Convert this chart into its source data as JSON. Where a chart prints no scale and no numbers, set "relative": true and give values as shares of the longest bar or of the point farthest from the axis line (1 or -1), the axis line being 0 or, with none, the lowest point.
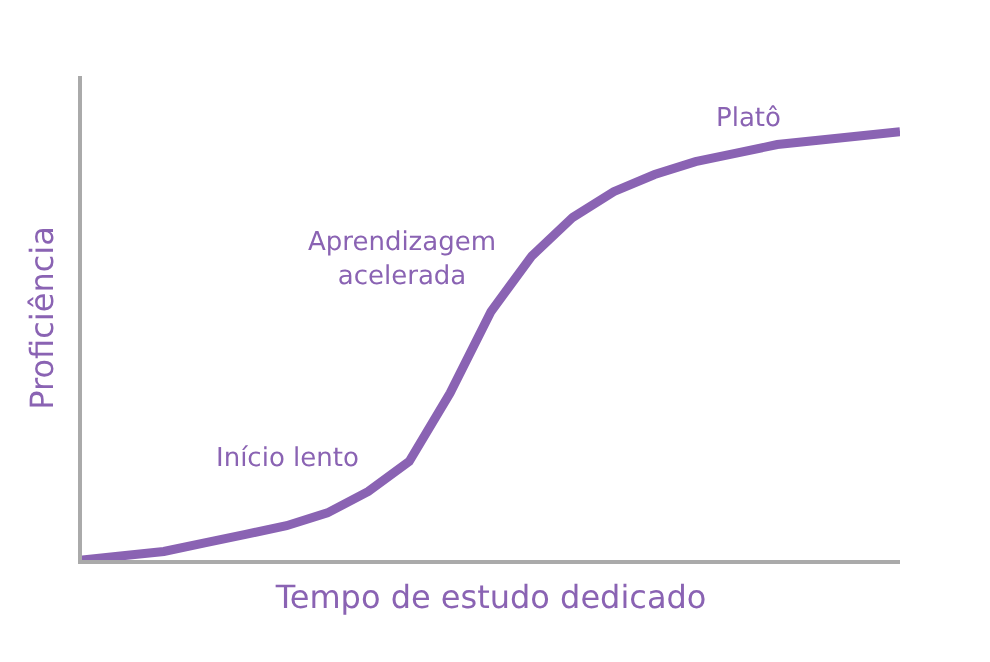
{
  "chart_data": {
    "type": "line",
    "relative": true,
    "xlabel": "Tempo de estudo dedicado",
    "ylabel": "Proficiência",
    "categories": [
      null,
      null,
      null,
      null,
      null,
      null,
      null,
      null,
      null,
      null,
      null,
      null,
      null,
      null,
      null,
      null,
      null,
      null,
      null,
      null,
      null
    ],
    "series": [
      {
        "color": "#8a63b3",
        "values": [
          0,
          0.01,
          0.02,
          0.04,
          0.06,
          0.08,
          0.11,
          0.16,
          0.23,
          0.39,
          0.58,
          0.71,
          0.8,
          0.86,
          0.9,
          0.93,
          0.95,
          0.97,
          0.98,
          0.99,
          1
        ]
      }
    ],
    "annotations": [
      "Início lento",
      "Aprendizagem\nacelerada",
      "Platô"
    ],
    "marker": "none",
    "line_style": "solid"
  }
}
